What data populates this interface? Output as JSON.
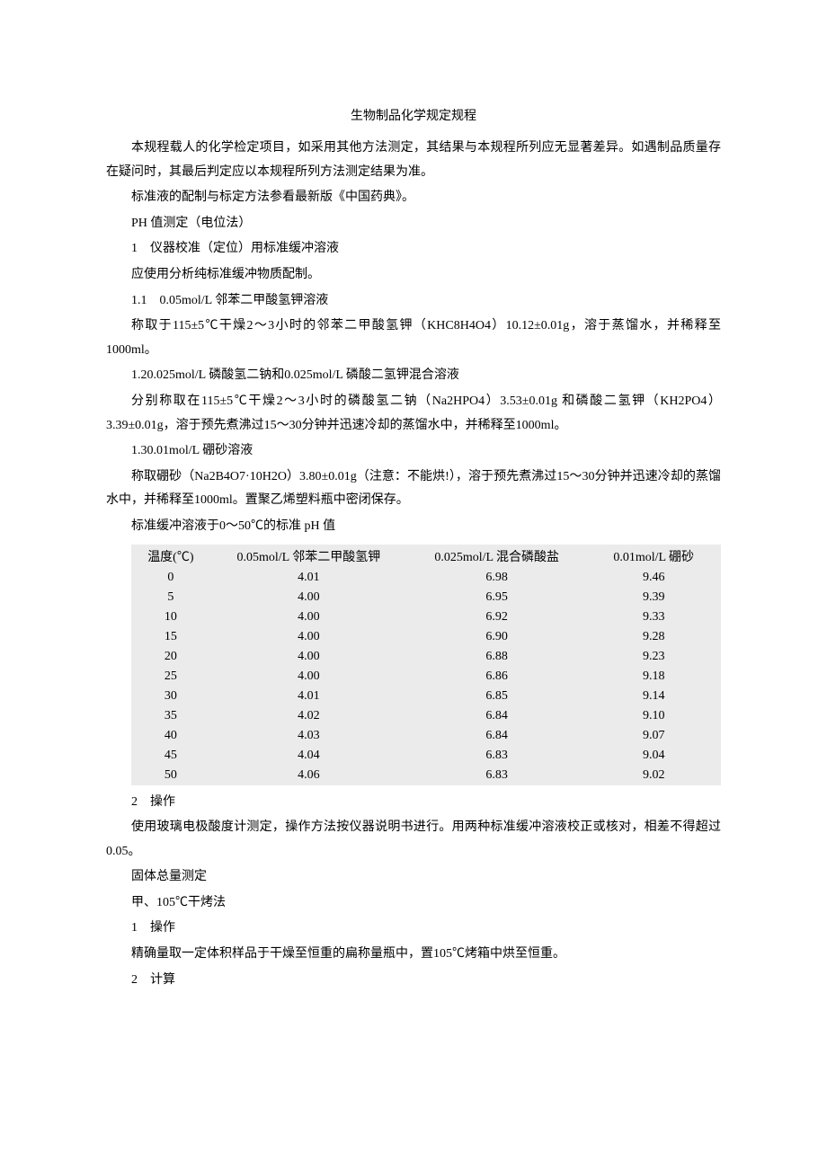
{
  "title": "生物制品化学规定规程",
  "paragraphs": {
    "p1": "本规程载人的化学检定项目，如采用其他方法测定，其结果与本规程所列应无显著差异。如遇制品质量存在疑问时，其最后判定应以本规程所列方法测定结果为准。",
    "p2": "标准液的配制与标定方法参看最新版《中国药典》。",
    "p3": "PH 值测定（电位法）",
    "p4": "1　仪器校准（定位）用标准缓冲溶液",
    "p5": "应使用分析纯标准缓冲物质配制。",
    "p6": "1.1　0.05mol/L 邻苯二甲酸氢钾溶液",
    "p7": "称取于115±5℃干燥2～3小时的邻苯二甲酸氢钾（KHC8H4O4）10.12±0.01g，溶于蒸馏水，并稀释至1000ml。",
    "p8": "1.20.025mol/L 磷酸氢二钠和0.025mol/L 磷酸二氢钾混合溶液",
    "p9": "分别称取在115±5℃干燥2～3小时的磷酸氢二钠（Na2HPO4）3.53±0.01g 和磷酸二氢钾（KH2PO4）3.39±0.01g，溶于预先煮沸过15～30分钟并迅速冷却的蒸馏水中，并稀释至1000ml。",
    "p10": "1.30.01mol/L 硼砂溶液",
    "p11": "称取硼砂（Na2B4O7·10H2O）3.80±0.01g（注意：不能烘!），溶于预先煮沸过15～30分钟并迅速冷却的蒸馏水中，并稀释至1000ml。置聚乙烯塑料瓶中密闭保存。",
    "p12": "标准缓冲溶液于0～50℃的标准 pH 值",
    "p13": "2　操作",
    "p14": "使用玻璃电极酸度计测定，操作方法按仪器说明书进行。用两种标准缓冲溶液校正或核对，相差不得超过0.05。",
    "p15": "固体总量测定",
    "p16": "甲、105℃干烤法",
    "p17": "1　操作",
    "p18": "精确量取一定体积样品于干燥至恒重的扁称量瓶中，置105℃烤箱中烘至恒重。",
    "p19": "2　计算"
  },
  "table": {
    "headers": [
      "温度(℃)",
      "0.05mol/L 邻苯二甲酸氢钾",
      "0.025mol/L 混合磷酸盐",
      "0.01mol/L 硼砂"
    ],
    "rows": [
      [
        "0",
        "4.01",
        "6.98",
        "9.46"
      ],
      [
        "5",
        "4.00",
        "6.95",
        "9.39"
      ],
      [
        "10",
        "4.00",
        "6.92",
        "9.33"
      ],
      [
        "15",
        "4.00",
        "6.90",
        "9.28"
      ],
      [
        "20",
        "4.00",
        "6.88",
        "9.23"
      ],
      [
        "25",
        "4.00",
        "6.86",
        "9.18"
      ],
      [
        "30",
        "4.01",
        "6.85",
        "9.14"
      ],
      [
        "35",
        "4.02",
        "6.84",
        "9.10"
      ],
      [
        "40",
        "4.03",
        "6.84",
        "9.07"
      ],
      [
        "45",
        "4.04",
        "6.83",
        "9.04"
      ],
      [
        "50",
        "4.06",
        "6.83",
        "9.02"
      ]
    ],
    "header_bg": "#ebebeb",
    "cell_bg": "#ebebeb",
    "fontsize": 14
  },
  "colors": {
    "text": "#000000",
    "background": "#ffffff"
  }
}
